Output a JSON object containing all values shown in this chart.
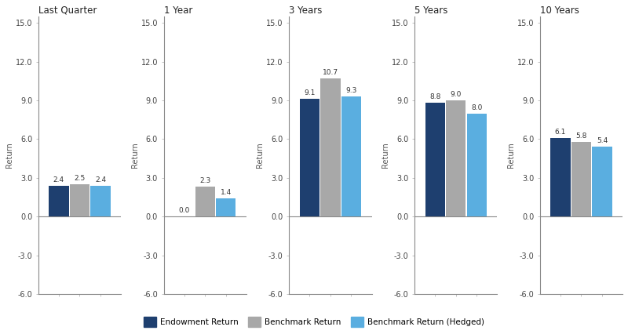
{
  "periods": [
    "Last Quarter",
    "1 Year",
    "3 Years",
    "5 Years",
    "10 Years"
  ],
  "endowment": [
    2.4,
    0.0,
    9.1,
    8.8,
    6.1
  ],
  "benchmark": [
    2.5,
    2.3,
    10.7,
    9.0,
    5.8
  ],
  "benchmark_hedged": [
    2.4,
    1.4,
    9.3,
    8.0,
    5.4
  ],
  "endowment_color": "#1e3f6f",
  "benchmark_color": "#a8a8a8",
  "benchmark_hedged_color": "#5aaee0",
  "ylim": [
    -6.0,
    15.5
  ],
  "yticks": [
    -6.0,
    -3.0,
    0.0,
    3.0,
    6.0,
    9.0,
    12.0,
    15.0
  ],
  "ylabel": "Return",
  "bar_width": 0.25,
  "legend_labels": [
    "Endowment Return",
    "Benchmark Return",
    "Benchmark Return (Hedged)"
  ],
  "label_fontsize": 6.5,
  "title_fontsize": 8.5,
  "axis_fontsize": 7,
  "tick_fontsize": 7,
  "fig_bg": "#ffffff"
}
